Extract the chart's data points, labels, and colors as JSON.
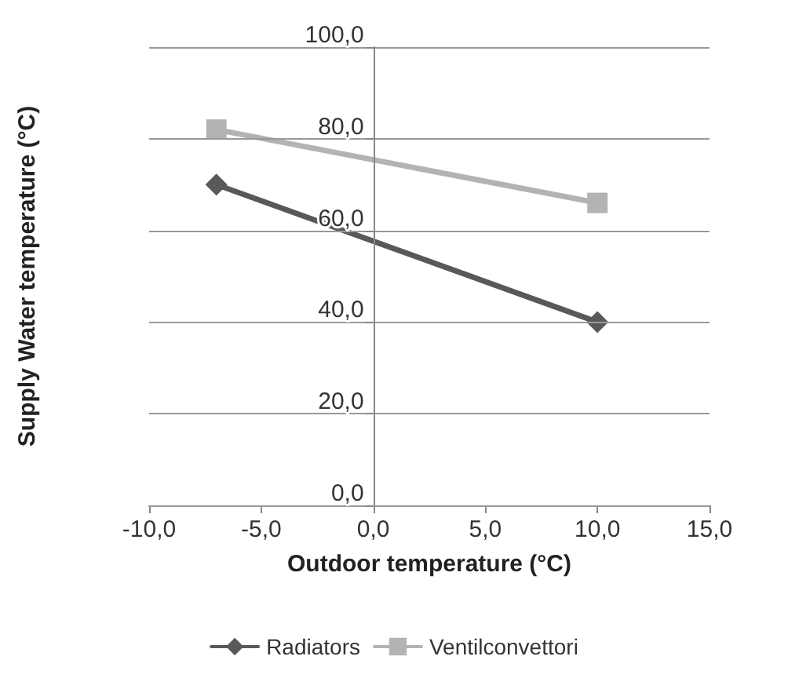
{
  "chart_data": {
    "type": "line",
    "xlabel": "Outdoor temperature (°C)",
    "ylabel": "Supply Water temperature (°C)",
    "series": [
      {
        "name": "Radiators",
        "color": "#595959",
        "marker": "diamond",
        "values": [
          70,
          40
        ]
      },
      {
        "name": "Ventilconvettori",
        "color": "#b3b3b3",
        "marker": "square",
        "values": [
          82,
          66
        ]
      }
    ],
    "x": [
      -7,
      10
    ],
    "xlim": [
      -10,
      15
    ],
    "xticks": [
      {
        "value": -10,
        "label": "-10,0"
      },
      {
        "value": -5,
        "label": "-5,0"
      },
      {
        "value": 0,
        "label": "0,0"
      },
      {
        "value": 5,
        "label": "5,0"
      },
      {
        "value": 10,
        "label": "10,0"
      },
      {
        "value": 15,
        "label": "15,0"
      }
    ],
    "ylim": [
      0,
      100
    ],
    "yticks": [
      {
        "value": 0,
        "label": "0,0"
      },
      {
        "value": 20,
        "label": "20,0"
      },
      {
        "value": 40,
        "label": "40,0"
      },
      {
        "value": 60,
        "label": "60,0"
      },
      {
        "value": 80,
        "label": "80,0"
      },
      {
        "value": 100,
        "label": "100,0"
      }
    ],
    "grid": "y",
    "legend": "bottom",
    "line_style": "solid"
  }
}
